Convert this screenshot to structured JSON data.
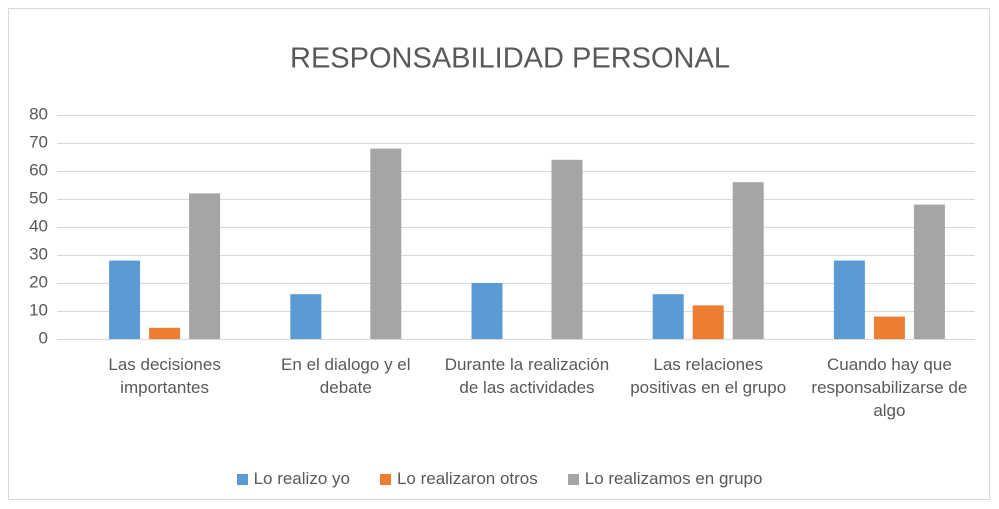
{
  "chart_data": {
    "type": "bar",
    "title": "RESPONSABILIDAD PERSONAL",
    "categories": [
      "Las decisiones importantes",
      "En el dialogo y el debate",
      "Durante la realización de las actividades",
      "Las relaciones positivas en el grupo",
      "Cuando hay que responsabilizarse de algo"
    ],
    "series": [
      {
        "name": "Lo realizo yo",
        "color": "#5b9bd5",
        "values": [
          28,
          16,
          20,
          16,
          28
        ]
      },
      {
        "name": "Lo realizaron otros",
        "color": "#ed7d31",
        "values": [
          4,
          0,
          0,
          12,
          8
        ]
      },
      {
        "name": "Lo realizamos en grupo",
        "color": "#a5a5a5",
        "values": [
          52,
          68,
          64,
          56,
          48
        ]
      }
    ],
    "ylim": [
      0,
      80
    ],
    "yticks": [
      0,
      10,
      20,
      30,
      40,
      50,
      60,
      70,
      80
    ],
    "grid": true,
    "legend": "bottom"
  }
}
